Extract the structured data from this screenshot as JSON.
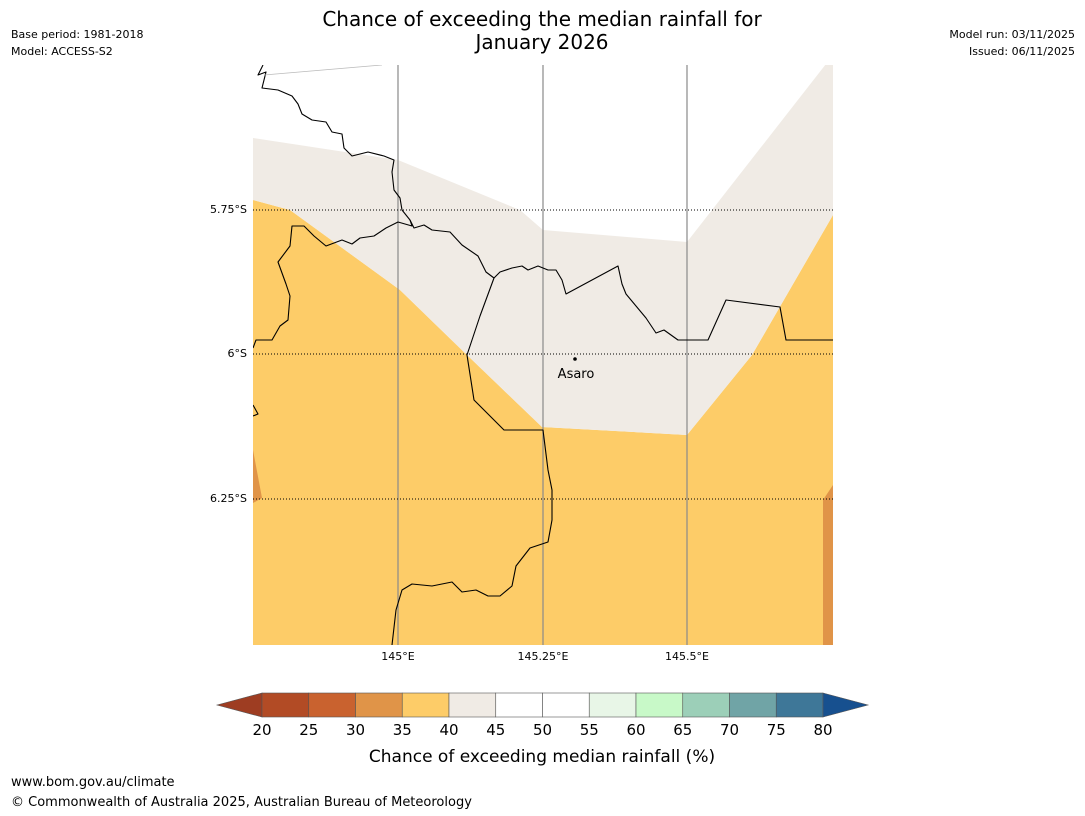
{
  "title": {
    "line1": "Chance of exceeding the median rainfall for",
    "line2": "January 2026"
  },
  "meta": {
    "base_period": "Base period: 1981-2018",
    "model": "Model: ACCESS-S2",
    "model_run": "Model run: 03/11/2025",
    "issued": "Issued: 06/11/2025"
  },
  "map": {
    "lat_labels": [
      "5.75°S",
      "6°S",
      "6.25°S"
    ],
    "lon_labels": [
      "145°E",
      "145.25°E",
      "145.5°E"
    ],
    "place": "Asaro",
    "category_colors": {
      "30-35": "#e09448",
      "35-40": "#fdcc68",
      "40-45": "#f0ebe5",
      "45-55": "#ffffff"
    }
  },
  "legend": {
    "title": "Chance of exceeding median rainfall (%)",
    "ticks": [
      "20",
      "25",
      "30",
      "35",
      "40",
      "45",
      "50",
      "55",
      "60",
      "65",
      "70",
      "75",
      "80"
    ],
    "colors": [
      "#9e3d22",
      "#b24b25",
      "#c9622f",
      "#e09448",
      "#fdcc68",
      "#f0ebe5",
      "#ffffff",
      "#ffffff",
      "#e8f6e7",
      "#c8f9c8",
      "#9ccfb8",
      "#70a4a6",
      "#3e7798",
      "#17508f"
    ]
  },
  "footer": {
    "url": "www.bom.gov.au/climate",
    "copyright": "© Commonwealth of Australia 2025, Australian Bureau of Meteorology"
  }
}
